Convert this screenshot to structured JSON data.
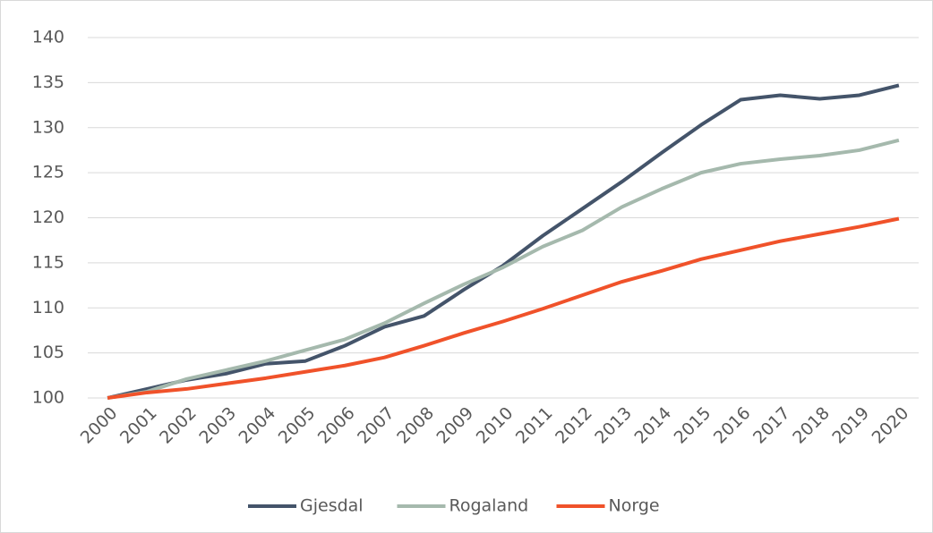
{
  "chart_data": {
    "type": "line",
    "categories": [
      "2000",
      "2001",
      "2002",
      "2003",
      "2004",
      "2005",
      "2006",
      "2007",
      "2008",
      "2009",
      "2010",
      "2011",
      "2012",
      "2013",
      "2014",
      "2015",
      "2016",
      "2017",
      "2018",
      "2019",
      "2020"
    ],
    "series": [
      {
        "name": "Gjesdal",
        "color": "#44546a",
        "values": [
          100,
          101,
          102,
          102.7,
          103.8,
          104.1,
          105.8,
          107.9,
          109.1,
          112,
          114.7,
          118,
          121,
          124,
          127.2,
          130.3,
          133.1,
          133.6,
          133.2,
          133.6,
          134.7
        ]
      },
      {
        "name": "Rogaland",
        "color": "#a5b9ad",
        "values": [
          100,
          100.7,
          102.1,
          103.1,
          104.1,
          105.3,
          106.5,
          108.3,
          110.5,
          112.6,
          114.5,
          116.8,
          118.6,
          121.2,
          123.2,
          125,
          126,
          126.5,
          126.9,
          127.5,
          128.6
        ]
      },
      {
        "name": "Norge",
        "color": "#f0522a",
        "values": [
          100,
          100.6,
          101,
          101.6,
          102.2,
          102.9,
          103.6,
          104.5,
          105.8,
          107.2,
          108.5,
          109.9,
          111.4,
          112.9,
          114.1,
          115.4,
          116.4,
          117.4,
          118.2,
          119,
          119.9
        ]
      }
    ],
    "ylim": [
      100,
      140
    ],
    "yticks": [
      100,
      105,
      110,
      115,
      120,
      125,
      130,
      135,
      140
    ],
    "grid": true,
    "legend": "bottom"
  }
}
